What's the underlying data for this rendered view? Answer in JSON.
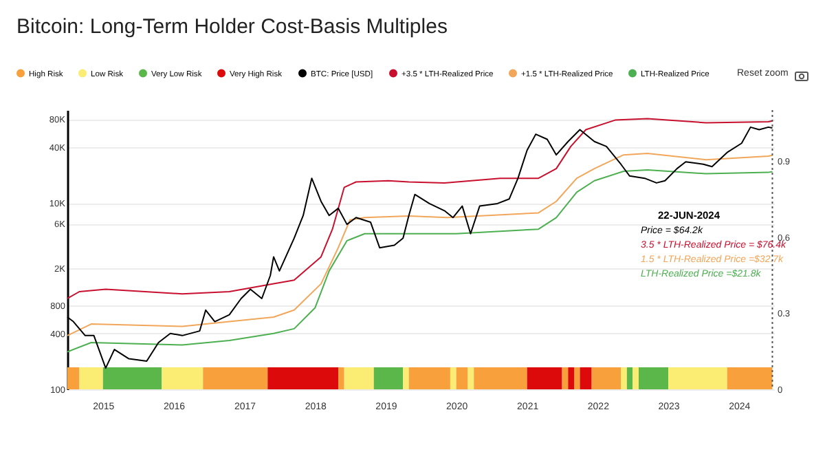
{
  "chart_data": {
    "type": "line",
    "title": "Bitcoin: Long-Term Holder Cost-Basis Multiples",
    "log": "y",
    "grid": "y",
    "legend": "top",
    "xlim": [
      "2014-07-01",
      "2024-07-01"
    ],
    "xticks": [
      "2015",
      "2016",
      "2017",
      "2018",
      "2019",
      "2020",
      "2021",
      "2022",
      "2023",
      "2024"
    ],
    "ylim": [
      100,
      100000
    ],
    "yticks": [
      100,
      400,
      800,
      {
        "value": 2000,
        "label": "2K"
      },
      {
        "value": 6000,
        "label": "6K"
      },
      {
        "value": 10000,
        "label": "10K"
      },
      {
        "value": 40000,
        "label": "40K"
      },
      {
        "value": 80000,
        "label": "80K"
      }
    ],
    "y2lim": [
      0,
      1.1
    ],
    "y2ticks": [
      0,
      0.3,
      0.6,
      0.9
    ],
    "ref_lines": [
      {
        "axis": "x",
        "value": "2024-06-22",
        "line_style": "dotted",
        "color": "#555555"
      }
    ],
    "bands": [
      {
        "axis": "x",
        "from": "2014-07",
        "to": "2014-09",
        "label": "High Risk",
        "color": "#f7a03c"
      },
      {
        "axis": "x",
        "from": "2014-09",
        "to": "2015-01",
        "label": "Low Risk",
        "color": "#fbec74"
      },
      {
        "axis": "x",
        "from": "2015-01",
        "to": "2015-11",
        "label": "Very Low Risk",
        "color": "#5bb749"
      },
      {
        "axis": "x",
        "from": "2015-11",
        "to": "2016-06",
        "color": "#fbec74"
      },
      {
        "axis": "x",
        "from": "2016-06",
        "to": "2017-05",
        "color": "#f7a03c"
      },
      {
        "axis": "x",
        "from": "2017-05",
        "to": "2018-05",
        "label": "Very High Risk",
        "color": "#dc0a0a"
      },
      {
        "axis": "x",
        "from": "2018-05",
        "to": "2018-06",
        "color": "#f7a03c"
      },
      {
        "axis": "x",
        "from": "2018-06",
        "to": "2018-11",
        "color": "#fbec74"
      },
      {
        "axis": "x",
        "from": "2018-11",
        "to": "2019-04",
        "color": "#5bb749"
      },
      {
        "axis": "x",
        "from": "2019-04",
        "to": "2019-05",
        "color": "#fbec74"
      },
      {
        "axis": "x",
        "from": "2019-05",
        "to": "2019-12",
        "color": "#f7a03c"
      },
      {
        "axis": "x",
        "from": "2019-12",
        "to": "2020-01",
        "color": "#fbec74"
      },
      {
        "axis": "x",
        "from": "2020-01",
        "to": "2020-03",
        "color": "#f7a03c"
      },
      {
        "axis": "x",
        "from": "2020-03",
        "to": "2020-04",
        "color": "#fbec74"
      },
      {
        "axis": "x",
        "from": "2020-04",
        "to": "2021-01",
        "color": "#f7a03c"
      },
      {
        "axis": "x",
        "from": "2021-01",
        "to": "2021-07",
        "color": "#dc0a0a"
      },
      {
        "axis": "x",
        "from": "2021-07",
        "to": "2021-08",
        "color": "#f7a03c"
      },
      {
        "axis": "x",
        "from": "2021-08",
        "to": "2021-09",
        "color": "#dc0a0a"
      },
      {
        "axis": "x",
        "from": "2021-09",
        "to": "2021-10",
        "color": "#f7a03c"
      },
      {
        "axis": "x",
        "from": "2021-10",
        "to": "2021-12",
        "color": "#dc0a0a"
      },
      {
        "axis": "x",
        "from": "2021-12",
        "to": "2022-05",
        "color": "#f7a03c"
      },
      {
        "axis": "x",
        "from": "2022-05",
        "to": "2022-06",
        "color": "#fbec74"
      },
      {
        "axis": "x",
        "from": "2022-06",
        "to": "2022-07",
        "color": "#5bb749"
      },
      {
        "axis": "x",
        "from": "2022-07",
        "to": "2022-08",
        "color": "#fbec74"
      },
      {
        "axis": "x",
        "from": "2022-08",
        "to": "2023-01",
        "color": "#5bb749"
      },
      {
        "axis": "x",
        "from": "2023-01",
        "to": "2023-11",
        "color": "#fbec74"
      },
      {
        "axis": "x",
        "from": "2023-11",
        "to": "2024-06-22",
        "color": "#f7a03c"
      }
    ],
    "annotations": [
      "22-JUN-2024",
      "Price = $64.2k",
      "3.5 * LTH-Realized Price = $76.4k",
      "1.5 * LTH-Realized Price =$32.7k",
      "LTH-Realized Price =$21.8k",
      "Reset zoom"
    ],
    "series": [
      {
        "name": "BTC: Price [USD]",
        "color": "#000000",
        "x": [
          "2014-07-01",
          "2014-08-01",
          "2014-10-01",
          "2014-11-15",
          "2015-01-15",
          "2015-03-01",
          "2015-05-15",
          "2015-08-15",
          "2015-10-15",
          "2015-12-15",
          "2016-02-15",
          "2016-05-15",
          "2016-06-15",
          "2016-08-01",
          "2016-10-15",
          "2016-12-15",
          "2017-02-01",
          "2017-04-01",
          "2017-05-15",
          "2017-06-01",
          "2017-07-01",
          "2017-09-15",
          "2017-11-01",
          "2017-12-15",
          "2018-02-01",
          "2018-03-15",
          "2018-05-01",
          "2018-06-15",
          "2018-08-01",
          "2018-10-15",
          "2018-12-01",
          "2019-02-15",
          "2019-04-01",
          "2019-05-01",
          "2019-06-01",
          "2019-08-15",
          "2019-11-01",
          "2019-12-15",
          "2020-02-01",
          "2020-03-15",
          "2020-05-01",
          "2020-08-01",
          "2020-10-01",
          "2020-11-15",
          "2021-01-01",
          "2021-02-15",
          "2021-04-15",
          "2021-06-01",
          "2021-08-01",
          "2021-10-01",
          "2021-12-15",
          "2022-02-15",
          "2022-05-01",
          "2022-06-15",
          "2022-09-01",
          "2022-11-01",
          "2022-12-15",
          "2023-02-15",
          "2023-04-01",
          "2023-07-01",
          "2023-08-15",
          "2023-11-01",
          "2024-01-15",
          "2024-03-01",
          "2024-04-15",
          "2024-06-01",
          "2024-06-22"
        ],
        "values": [
          597,
          534,
          378,
          378,
          169,
          268,
          213,
          201,
          318,
          399,
          378,
          424,
          710,
          534,
          632,
          945,
          1190,
          945,
          1670,
          2650,
          1870,
          4200,
          7380,
          18500,
          10450,
          7380,
          8800,
          5920,
          7000,
          6250,
          3320,
          3530,
          4200,
          7380,
          12400,
          9900,
          8300,
          7000,
          9300,
          4700,
          9300,
          9900,
          11100,
          18500,
          37000,
          55000,
          48500,
          33000,
          45900,
          61600,
          45900,
          40700,
          26200,
          19600,
          18500,
          16500,
          17400,
          23500,
          27800,
          26200,
          24700,
          35000,
          44000,
          65500,
          61600,
          65500,
          64200
        ]
      },
      {
        "name": "+3.5 * LTH-Realized Price",
        "color": "#c8102e",
        "x": [
          "2014-07-01",
          "2014-09-01",
          "2015-01-15",
          "2016-02-15",
          "2016-10-15",
          "2017-06-01",
          "2017-09-15",
          "2018-02-01",
          "2018-04-01",
          "2018-06-01",
          "2018-08-01",
          "2019-01-15",
          "2019-05-01",
          "2019-11-01",
          "2020-08-15",
          "2021-03-01",
          "2021-06-01",
          "2021-08-15",
          "2021-11-01",
          "2022-04-01",
          "2022-09-15",
          "2023-07-15",
          "2024-06-01",
          "2024-06-22"
        ],
        "values": [
          945,
          1120,
          1190,
          1060,
          1120,
          1360,
          1490,
          2650,
          5250,
          14800,
          16900,
          17400,
          16900,
          16500,
          18500,
          18500,
          23500,
          40700,
          61600,
          78000,
          81000,
          73000,
          75000,
          76400
        ]
      },
      {
        "name": "+1.5 * LTH-Realized Price",
        "color": "#f2a65a",
        "x": [
          "2014-07-01",
          "2014-11-01",
          "2016-02-15",
          "2016-10-15",
          "2017-06-01",
          "2017-09-15",
          "2018-02-01",
          "2018-05-01",
          "2018-07-01",
          "2018-09-15",
          "2019-05-01",
          "2019-11-15",
          "2021-03-01",
          "2021-06-01",
          "2021-09-15",
          "2021-12-15",
          "2022-05-15",
          "2022-09-15",
          "2023-07-15",
          "2024-06-01",
          "2024-06-22"
        ],
        "values": [
          378,
          503,
          475,
          534,
          597,
          710,
          1360,
          3320,
          6600,
          7000,
          7270,
          7000,
          7870,
          10450,
          18500,
          23500,
          33000,
          34200,
          29300,
          32000,
          32700
        ]
      },
      {
        "name": "LTH-Realized Price",
        "color": "#4caf50",
        "x": [
          "2014-07-01",
          "2014-11-01",
          "2016-02-15",
          "2016-10-15",
          "2017-06-01",
          "2017-09-15",
          "2018-01-01",
          "2018-03-15",
          "2018-06-15",
          "2018-09-15",
          "2019-05-01",
          "2020-01-01",
          "2021-03-01",
          "2021-06-01",
          "2021-09-15",
          "2021-12-15",
          "2022-05-15",
          "2022-09-15",
          "2023-07-15",
          "2024-06-01",
          "2024-06-22"
        ],
        "values": [
          253,
          318,
          300,
          335,
          399,
          448,
          750,
          1870,
          3950,
          4700,
          4700,
          4700,
          5250,
          7000,
          13100,
          17400,
          22000,
          22800,
          20700,
          21400,
          21800
        ]
      }
    ]
  }
}
